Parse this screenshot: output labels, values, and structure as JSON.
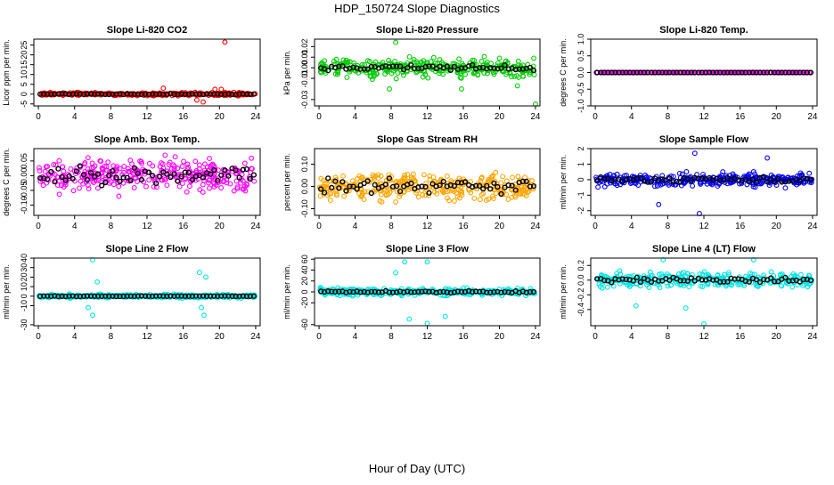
{
  "figure": {
    "title": "HDP_150724  Slope Diagnostics",
    "xlabel": "Hour of Day (UTC)"
  },
  "colors": {
    "hourly": "#000000"
  },
  "chart_data": [
    {
      "type": "scatter",
      "title": "Slope Li-820 CO2",
      "ylabel": "Licor ppm per min.",
      "color": "#ff0000",
      "xlim": [
        -0.5,
        24.5
      ],
      "ylim": [
        -6,
        28
      ],
      "xticks": [
        0,
        4,
        8,
        12,
        16,
        20,
        24
      ],
      "yticks": [
        -5,
        0,
        5,
        10,
        15,
        20,
        25
      ],
      "ytick_labels": [
        "-5",
        "0",
        "5",
        "10",
        "15",
        "20",
        "25"
      ],
      "scatter_spread": 0.6,
      "hourly_spread": 0.25,
      "outliers": [
        {
          "x": 20.6,
          "y": 26.5
        },
        {
          "x": 13.8,
          "y": 3
        },
        {
          "x": 17.5,
          "y": -3
        },
        {
          "x": 18.2,
          "y": -4
        },
        {
          "x": 19.5,
          "y": 2.5
        },
        {
          "x": 20.2,
          "y": 2.5
        }
      ]
    },
    {
      "type": "scatter",
      "title": "Slope Li-820 Pressure",
      "ylabel": "kPa per min.",
      "color": "#00cc00",
      "xlim": [
        -0.5,
        24.5
      ],
      "ylim": [
        -0.036,
        0.027
      ],
      "xticks": [
        0,
        4,
        8,
        12,
        16,
        20,
        24
      ],
      "yticks": [
        -0.03,
        -0.01,
        0.0,
        0.01,
        0.02
      ],
      "ytick_labels": [
        "-0.03",
        "-0.01",
        "0.00",
        "0.01",
        "0.02"
      ],
      "scatter_spread": 0.007,
      "hourly_spread": 0.003,
      "outliers": [
        {
          "x": 7.8,
          "y": -0.02
        },
        {
          "x": 15.8,
          "y": -0.02
        },
        {
          "x": 24.0,
          "y": -0.035
        },
        {
          "x": 22.0,
          "y": -0.017
        },
        {
          "x": 8.5,
          "y": 0.024
        }
      ]
    },
    {
      "type": "scatter",
      "title": "Slope Li-820 Temp.",
      "ylabel": "degrees C per min.",
      "color": "#ff00ff",
      "xlim": [
        -0.5,
        24.5
      ],
      "ylim": [
        -1.0,
        1.0
      ],
      "xticks": [
        0,
        4,
        8,
        12,
        16,
        20,
        24
      ],
      "yticks": [
        -1.0,
        -0.5,
        0.0,
        0.5,
        1.0
      ],
      "ytick_labels": [
        "-1.0",
        "-0.5",
        "0.0",
        "0.5",
        "1.0"
      ],
      "scatter_spread": 0.004,
      "hourly_spread": 0.002,
      "outliers": []
    },
    {
      "type": "scatter",
      "title": "Slope Amb. Box Temp.",
      "ylabel": "degrees C per min.",
      "color": "#ff00ff",
      "xlim": [
        -0.5,
        24.5
      ],
      "ylim": [
        -0.135,
        0.092
      ],
      "xticks": [
        0,
        4,
        8,
        12,
        16,
        20,
        24
      ],
      "yticks": [
        -0.1,
        -0.05,
        0.0,
        0.05
      ],
      "ytick_labels": [
        "-0.10",
        "-0.05",
        "0.00",
        "0.05"
      ],
      "scatter_spread": 0.045,
      "hourly_spread": 0.035,
      "outliers": []
    },
    {
      "type": "scatter",
      "title": "Slope Gas Stream RH",
      "ylabel": "percent per min.",
      "color": "#ffa500",
      "xlim": [
        -0.5,
        24.5
      ],
      "ylim": [
        -0.13,
        0.17
      ],
      "xticks": [
        0,
        4,
        8,
        12,
        16,
        20,
        24
      ],
      "yticks": [
        -0.1,
        0.0,
        0.1
      ],
      "ytick_labels": [
        "-0.10",
        "0.00",
        "0.10"
      ],
      "scatter_spread": 0.05,
      "hourly_spread": 0.04,
      "outliers": []
    },
    {
      "type": "scatter",
      "title": "Slope Sample Flow",
      "ylabel": "ml/min per min.",
      "color": "#0000ff",
      "xlim": [
        -0.5,
        24.5
      ],
      "ylim": [
        -2.3,
        2.0
      ],
      "xticks": [
        0,
        4,
        8,
        12,
        16,
        20,
        24
      ],
      "yticks": [
        -2,
        -1,
        0,
        1,
        2
      ],
      "ytick_labels": [
        "-2",
        "-1",
        "0",
        "1",
        "2"
      ],
      "scatter_spread": 0.35,
      "hourly_spread": 0.2,
      "outliers": [
        {
          "x": 11.5,
          "y": -2.2
        },
        {
          "x": 11.0,
          "y": 1.7
        },
        {
          "x": 7.0,
          "y": -1.6
        },
        {
          "x": 19.0,
          "y": 1.4
        }
      ]
    },
    {
      "type": "scatter",
      "title": "Slope Line 2 Flow",
      "ylabel": "ml/min per min.",
      "color": "#00e5e5",
      "xlim": [
        -0.5,
        24.5
      ],
      "ylim": [
        -31,
        40
      ],
      "xticks": [
        0,
        4,
        8,
        12,
        16,
        20,
        24
      ],
      "yticks": [
        -30,
        -10,
        0,
        10,
        20,
        30,
        40
      ],
      "ytick_labels": [
        "-30",
        "-10",
        "0",
        "10",
        "20",
        "30",
        "40"
      ],
      "scatter_spread": 1.5,
      "hourly_spread": 0.3,
      "outliers": [
        {
          "x": 6.0,
          "y": 38
        },
        {
          "x": 6.0,
          "y": -20
        },
        {
          "x": 5.5,
          "y": -12
        },
        {
          "x": 6.5,
          "y": 15
        },
        {
          "x": 17.8,
          "y": 25
        },
        {
          "x": 18.3,
          "y": -20
        },
        {
          "x": 18.0,
          "y": -12
        },
        {
          "x": 18.5,
          "y": 20
        }
      ]
    },
    {
      "type": "scatter",
      "title": "Slope Line 3 Flow",
      "ylabel": "ml/min per min.",
      "color": "#00e5e5",
      "xlim": [
        -0.5,
        24.5
      ],
      "ylim": [
        -62,
        62
      ],
      "xticks": [
        0,
        4,
        8,
        12,
        16,
        20,
        24
      ],
      "yticks": [
        -60,
        -20,
        0,
        20,
        40,
        60
      ],
      "ytick_labels": [
        "-60",
        "-20",
        "0",
        "20",
        "40",
        "60"
      ],
      "scatter_spread": 6,
      "hourly_spread": 2,
      "outliers": [
        {
          "x": 12.0,
          "y": -58
        },
        {
          "x": 9.5,
          "y": 55
        },
        {
          "x": 10.0,
          "y": -50
        },
        {
          "x": 14.0,
          "y": -45
        },
        {
          "x": 12.0,
          "y": 55
        },
        {
          "x": 8.5,
          "y": 35
        }
      ]
    },
    {
      "type": "scatter",
      "title": "Slope Line 4 (LT) Flow",
      "ylabel": "ml/min per min.",
      "color": "#00e5e5",
      "xlim": [
        -0.5,
        24.5
      ],
      "ylim": [
        -0.62,
        0.3
      ],
      "xticks": [
        0,
        4,
        8,
        12,
        16,
        20,
        24
      ],
      "yticks": [
        -0.4,
        -0.2,
        0.0,
        0.2
      ],
      "ytick_labels": [
        "-0.4",
        "-0.2",
        "0.0",
        "0.2"
      ],
      "scatter_spread": 0.08,
      "hourly_spread": 0.04,
      "outliers": [
        {
          "x": 12.0,
          "y": -0.6
        },
        {
          "x": 4.5,
          "y": -0.35
        },
        {
          "x": 10.0,
          "y": -0.38
        },
        {
          "x": 7.5,
          "y": 0.28
        },
        {
          "x": 17.5,
          "y": 0.28
        }
      ]
    }
  ]
}
